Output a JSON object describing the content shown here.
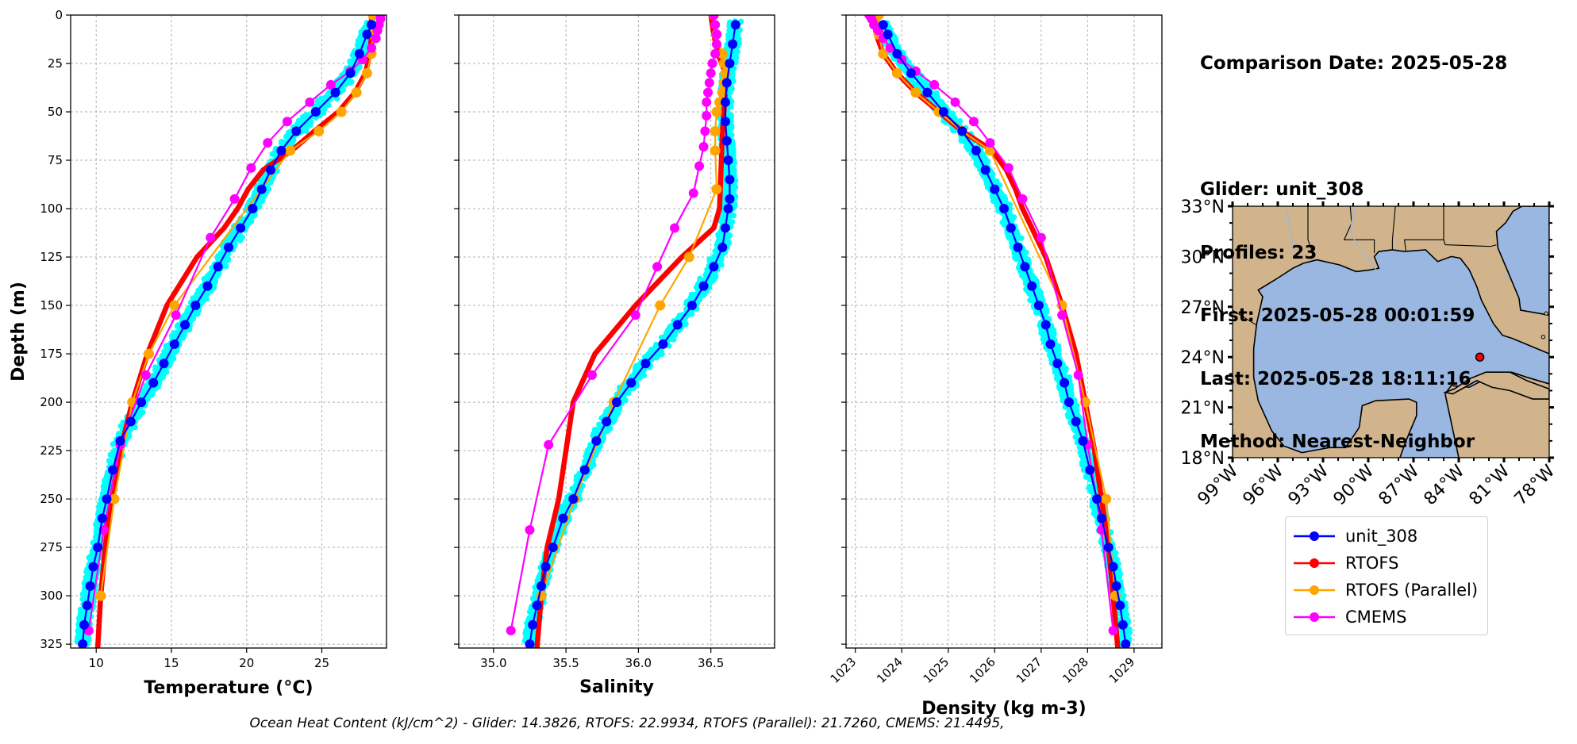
{
  "info": {
    "date_line": "Comparison Date: 2025-05-28",
    "glider_line": "Glider: unit_308",
    "profiles_line": "Profiles: 23",
    "first_line": "First: 2025-05-28 00:01:59",
    "last_line": "Last: 2025-05-28 18:11:16",
    "method_line": "Method: Nearest-Neighbor"
  },
  "footer": "Ocean Heat Content (kJ/cm^2) - Glider: 14.3826,  RTOFS: 22.9934,  RTOFS (Parallel): 21.7260,  CMEMS: 21.4495,",
  "colors": {
    "glider": "#0000ff",
    "glider_scatter": "#00ffff",
    "rtofs": "#ff0000",
    "rtofs_parallel": "#ffa500",
    "cmems": "#ff00ff",
    "land": "#d2b48c",
    "ocean": "#99b7e1"
  },
  "legend": [
    {
      "label": "unit_308",
      "color": "#0000ff"
    },
    {
      "label": "RTOFS",
      "color": "#ff0000"
    },
    {
      "label": "RTOFS (Parallel)",
      "color": "#ffa500"
    },
    {
      "label": "CMEMS",
      "color": "#ff00ff"
    }
  ],
  "chart_data": [
    {
      "type": "line",
      "xlabel": "Temperature (°C)",
      "ylabel": "Depth (m)",
      "xlim": [
        8.3,
        29.3
      ],
      "ylim": [
        327,
        0
      ],
      "xticks": [
        10,
        15,
        20,
        25
      ],
      "yticks": [
        0,
        25,
        50,
        75,
        100,
        125,
        150,
        175,
        200,
        225,
        250,
        275,
        300,
        325
      ],
      "grid": true,
      "series": [
        {
          "name": "unit_308",
          "x": [
            28.3,
            28.0,
            27.5,
            26.9,
            25.9,
            24.6,
            23.3,
            22.3,
            21.6,
            21.0,
            20.4,
            19.6,
            18.8,
            18.1,
            17.4,
            16.6,
            15.9,
            15.2,
            14.5,
            13.8,
            13.0,
            12.3,
            11.6,
            11.1,
            10.7,
            10.4,
            10.1,
            9.8,
            9.6,
            9.4,
            9.2,
            9.1
          ],
          "y": [
            5,
            10,
            20,
            30,
            40,
            50,
            60,
            70,
            80,
            90,
            100,
            110,
            120,
            130,
            140,
            150,
            160,
            170,
            180,
            190,
            200,
            210,
            220,
            235,
            250,
            260,
            275,
            285,
            295,
            305,
            315,
            325
          ]
        },
        {
          "name": "RTOFS",
          "x": [
            28.3,
            28.3,
            28.2,
            27.9,
            27.2,
            26.1,
            24.5,
            23.0,
            21.1,
            20.1,
            19.4,
            18.5,
            16.7,
            14.7,
            13.4,
            12.4,
            11.6,
            11.0,
            10.6,
            10.3,
            10.1
          ],
          "y": [
            0,
            10,
            20,
            30,
            40,
            50,
            60,
            70,
            80,
            90,
            100,
            110,
            125,
            150,
            175,
            200,
            225,
            250,
            275,
            300,
            327
          ]
        },
        {
          "name": "RTOFS (Parallel)",
          "x": [
            28.4,
            28.4,
            28.3,
            28.0,
            27.3,
            26.3,
            24.8,
            22.9,
            15.2,
            13.5,
            12.4,
            11.2,
            10.3
          ],
          "y": [
            0,
            10,
            20,
            30,
            40,
            50,
            60,
            70,
            150,
            175,
            200,
            250,
            300
          ]
        },
        {
          "name": "CMEMS",
          "x": [
            28.9,
            28.9,
            28.8,
            28.7,
            28.6,
            28.3,
            27.7,
            26.9,
            25.6,
            24.2,
            22.7,
            21.4,
            20.3,
            19.2,
            17.6,
            15.3,
            13.3,
            11.6,
            10.5,
            9.5
          ],
          "y": [
            0,
            2,
            5,
            8,
            12,
            17,
            23,
            29,
            36,
            45,
            55,
            66,
            79,
            95,
            115,
            155,
            186,
            222,
            266,
            318
          ]
        }
      ]
    },
    {
      "type": "line",
      "xlabel": "Salinity",
      "xlim": [
        34.76,
        36.94
      ],
      "ylim": [
        327,
        0
      ],
      "xticks": [
        35.0,
        35.5,
        36.0,
        36.5
      ],
      "grid": true,
      "series": [
        {
          "name": "unit_308",
          "x": [
            36.67,
            36.65,
            36.63,
            36.61,
            36.6,
            36.6,
            36.61,
            36.62,
            36.63,
            36.63,
            36.62,
            36.6,
            36.58,
            36.52,
            36.45,
            36.37,
            36.27,
            36.17,
            36.05,
            35.95,
            35.85,
            35.78,
            35.71,
            35.63,
            35.55,
            35.48,
            35.41,
            35.36,
            35.33,
            35.3,
            35.27,
            35.25
          ],
          "y": [
            5,
            15,
            25,
            35,
            45,
            55,
            65,
            75,
            85,
            95,
            100,
            110,
            120,
            130,
            140,
            150,
            160,
            170,
            180,
            190,
            200,
            210,
            220,
            235,
            250,
            260,
            275,
            285,
            295,
            305,
            315,
            325
          ]
        },
        {
          "name": "RTOFS",
          "x": [
            36.5,
            36.52,
            36.55,
            36.6,
            36.6,
            36.58,
            36.57,
            36.56,
            36.52,
            36.3,
            35.98,
            35.7,
            35.55,
            35.45,
            35.37,
            35.33,
            35.3
          ],
          "y": [
            0,
            10,
            20,
            30,
            40,
            60,
            80,
            100,
            110,
            125,
            150,
            175,
            200,
            250,
            275,
            300,
            327
          ]
        },
        {
          "name": "RTOFS (Parallel)",
          "x": [
            36.52,
            36.54,
            36.58,
            36.59,
            36.6,
            36.59,
            36.58,
            36.56,
            36.54,
            36.53,
            36.53,
            36.54,
            36.35,
            36.15,
            35.83,
            35.56,
            35.33
          ],
          "y": [
            0,
            10,
            20,
            25,
            30,
            35,
            40,
            45,
            50,
            60,
            70,
            90,
            125,
            150,
            200,
            250,
            300
          ]
        },
        {
          "name": "CMEMS",
          "x": [
            36.52,
            36.53,
            36.54,
            36.54,
            36.53,
            36.51,
            36.5,
            36.49,
            36.48,
            36.47,
            36.47,
            36.46,
            36.45,
            36.42,
            36.38,
            36.25,
            36.13,
            35.98,
            35.68,
            35.38,
            35.25,
            35.12
          ],
          "y": [
            0,
            5,
            10,
            15,
            20,
            25,
            30,
            35,
            40,
            45,
            52,
            60,
            68,
            78,
            92,
            110,
            130,
            155,
            186,
            222,
            266,
            318
          ]
        }
      ]
    },
    {
      "type": "line",
      "xlabel": "Density (kg m-3)",
      "xlim": [
        1022.8,
        1029.6
      ],
      "ylim": [
        327,
        0
      ],
      "xticks": [
        1023,
        1024,
        1025,
        1026,
        1027,
        1028,
        1029
      ],
      "grid": true,
      "series": [
        {
          "name": "unit_308",
          "x": [
            1023.6,
            1023.7,
            1023.9,
            1024.2,
            1024.55,
            1024.9,
            1025.3,
            1025.6,
            1025.8,
            1026.0,
            1026.2,
            1026.35,
            1026.5,
            1026.65,
            1026.8,
            1026.95,
            1027.1,
            1027.2,
            1027.35,
            1027.5,
            1027.6,
            1027.75,
            1027.9,
            1028.05,
            1028.2,
            1028.3,
            1028.45,
            1028.55,
            1028.62,
            1028.7,
            1028.76,
            1028.82
          ],
          "y": [
            5,
            10,
            20,
            30,
            40,
            50,
            60,
            70,
            80,
            90,
            100,
            110,
            120,
            130,
            140,
            150,
            160,
            170,
            180,
            190,
            200,
            210,
            220,
            235,
            250,
            260,
            275,
            285,
            295,
            305,
            315,
            325
          ]
        },
        {
          "name": "RTOFS",
          "x": [
            1023.4,
            1023.45,
            1023.6,
            1023.9,
            1024.3,
            1024.8,
            1025.3,
            1025.95,
            1026.25,
            1026.45,
            1026.6,
            1026.8,
            1027.1,
            1027.45,
            1027.75,
            1027.95,
            1028.15,
            1028.3,
            1028.45,
            1028.55,
            1028.65
          ],
          "y": [
            0,
            10,
            20,
            30,
            40,
            50,
            60,
            70,
            80,
            90,
            100,
            110,
            125,
            150,
            175,
            200,
            225,
            250,
            275,
            300,
            327
          ]
        },
        {
          "name": "RTOFS (Parallel)",
          "x": [
            1023.5,
            1023.5,
            1023.6,
            1023.9,
            1024.3,
            1024.8,
            1025.3,
            1025.9,
            1027.45,
            1027.95,
            1028.4,
            1028.6
          ],
          "y": [
            0,
            10,
            20,
            30,
            40,
            50,
            60,
            70,
            150,
            200,
            250,
            300
          ]
        },
        {
          "name": "CMEMS",
          "x": [
            1023.3,
            1023.35,
            1023.4,
            1023.5,
            1023.6,
            1023.75,
            1024.0,
            1024.3,
            1024.7,
            1025.15,
            1025.55,
            1025.9,
            1026.3,
            1026.6,
            1027.0,
            1027.45,
            1027.8,
            1028.0,
            1028.3,
            1028.55
          ],
          "y": [
            0,
            2,
            5,
            8,
            12,
            17,
            23,
            29,
            36,
            45,
            55,
            66,
            79,
            95,
            115,
            155,
            186,
            222,
            266,
            318
          ]
        }
      ]
    },
    {
      "type": "map",
      "xticks": [
        "99°W",
        "96°W",
        "93°W",
        "90°W",
        "87°W",
        "84°W",
        "81°W",
        "78°W"
      ],
      "yticks": [
        "33°N",
        "30°N",
        "27°N",
        "24°N",
        "21°N",
        "18°N"
      ],
      "lon_range": [
        -99,
        -78
      ],
      "lat_range": [
        18,
        33
      ],
      "glider_position": {
        "lon": -82.6,
        "lat": 24.0
      }
    }
  ]
}
